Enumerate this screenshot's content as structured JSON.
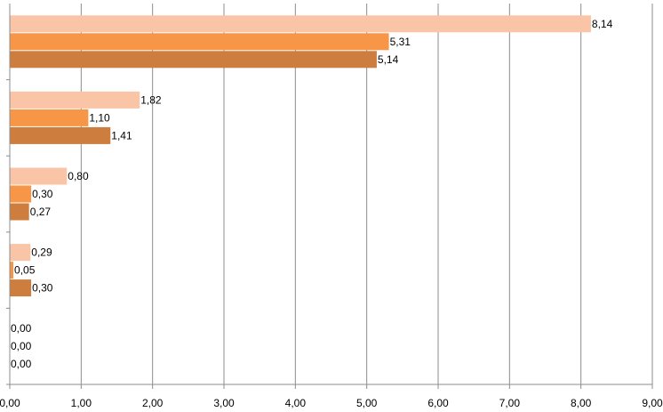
{
  "chart_data": {
    "type": "bar",
    "orientation": "horizontal",
    "title": "",
    "xlabel": "",
    "ylabel": "",
    "xlim": [
      0,
      9
    ],
    "x_ticks": [
      "0,00",
      "1,00",
      "2,00",
      "3,00",
      "4,00",
      "5,00",
      "6,00",
      "7,00",
      "8,00",
      "9,00"
    ],
    "x_tick_values": [
      0,
      1,
      2,
      3,
      4,
      5,
      6,
      7,
      8,
      9
    ],
    "grid": "vertical",
    "legend": "none",
    "categories": [
      "",
      "",
      "",
      "",
      ""
    ],
    "series": [
      {
        "values": [
          8.14,
          1.82,
          0.8,
          0.29,
          0.0
        ],
        "labels": [
          "8,14",
          "1,82",
          "0,80",
          "0,29",
          "0,00"
        ],
        "color": "#fac4a6"
      },
      {
        "values": [
          5.31,
          1.1,
          0.3,
          0.05,
          0.0
        ],
        "labels": [
          "5,31",
          "1,10",
          "0,30",
          "0,05",
          "0,00"
        ],
        "color": "#f79646"
      },
      {
        "values": [
          5.14,
          1.41,
          0.27,
          0.3,
          0.0
        ],
        "labels": [
          "5,14",
          "1,41",
          "0,27",
          "0,30",
          "0,00"
        ],
        "color": "#cd7e3e"
      }
    ]
  }
}
